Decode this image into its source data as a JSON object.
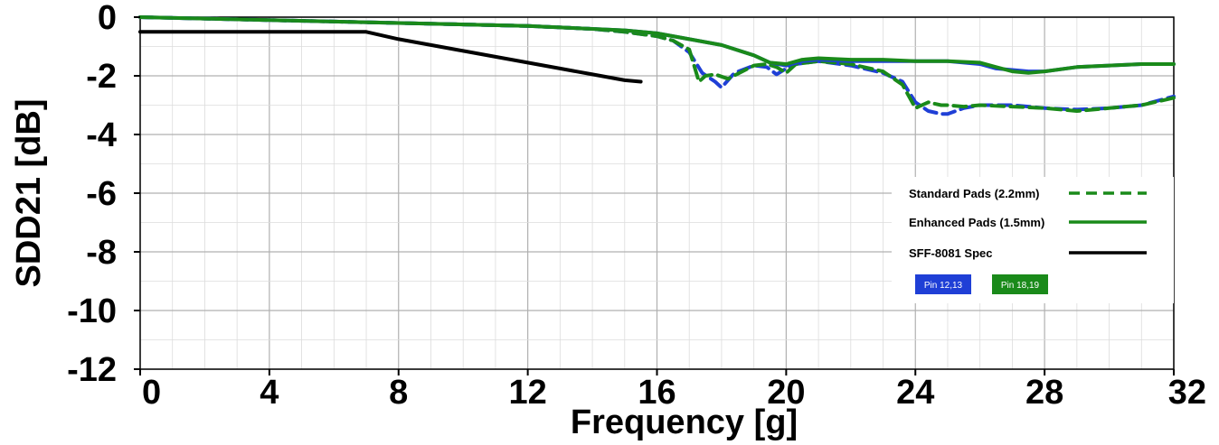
{
  "chart_data": {
    "type": "line",
    "title": "",
    "xlabel": "Frequency [g]",
    "ylabel": "SDD21 [dB]",
    "xlim": [
      0,
      32
    ],
    "ylim": [
      -12,
      0
    ],
    "xticks": [
      0,
      4,
      8,
      12,
      16,
      20,
      24,
      28,
      32
    ],
    "yticks": [
      0,
      -2,
      -4,
      -6,
      -8,
      -10,
      -12
    ],
    "grid": true,
    "legend_position": "right-center",
    "series": [
      {
        "name": "Standard Pads (2.2mm)",
        "group": "Pin 12,13",
        "color": "#1f3fd6",
        "style": "dashed",
        "x": [
          0,
          2,
          4,
          6,
          8,
          10,
          12,
          14,
          15,
          16,
          16.5,
          17,
          17.4,
          17.8,
          18,
          18.4,
          19,
          19.4,
          19.7,
          20,
          20.3,
          21,
          22,
          23,
          23.6,
          24,
          24.4,
          24.8,
          25,
          25.5,
          26,
          27,
          28,
          29,
          30,
          31,
          32
        ],
        "y": [
          0,
          -0.05,
          -0.1,
          -0.15,
          -0.2,
          -0.25,
          -0.3,
          -0.4,
          -0.5,
          -0.65,
          -0.8,
          -1.2,
          -1.9,
          -2.2,
          -2.4,
          -1.9,
          -1.65,
          -1.7,
          -1.95,
          -1.75,
          -1.6,
          -1.5,
          -1.65,
          -1.9,
          -2.2,
          -2.9,
          -3.2,
          -3.3,
          -3.3,
          -3.1,
          -3.0,
          -3.0,
          -3.1,
          -3.15,
          -3.1,
          -3.0,
          -2.7
        ]
      },
      {
        "name": "Standard Pads (2.2mm)",
        "group": "Pin 18,19",
        "color": "#1a8a1a",
        "style": "dashed",
        "x": [
          0,
          2,
          4,
          6,
          8,
          10,
          12,
          14,
          15,
          16,
          16.5,
          17,
          17.3,
          17.5,
          17.8,
          18.2,
          19,
          19.4,
          19.7,
          20,
          20.3,
          21,
          22,
          23,
          23.6,
          24,
          24.4,
          24.8,
          25,
          25.5,
          26,
          27,
          28,
          29,
          30,
          31,
          32
        ],
        "y": [
          0,
          -0.05,
          -0.1,
          -0.15,
          -0.2,
          -0.25,
          -0.3,
          -0.4,
          -0.5,
          -0.65,
          -0.8,
          -1.1,
          -2.2,
          -2.0,
          -1.95,
          -2.1,
          -1.65,
          -1.6,
          -1.7,
          -1.9,
          -1.6,
          -1.5,
          -1.6,
          -1.85,
          -2.3,
          -3.1,
          -2.9,
          -3.0,
          -3.0,
          -3.05,
          -3.0,
          -3.05,
          -3.1,
          -3.2,
          -3.1,
          -3.0,
          -2.75
        ]
      },
      {
        "name": "Enhanced Pads (1.5mm)",
        "group": "Pin 12,13",
        "color": "#1f3fd6",
        "style": "solid",
        "x": [
          0,
          2,
          4,
          6,
          8,
          10,
          12,
          14,
          15,
          16,
          17,
          18,
          19,
          19.5,
          20,
          20.5,
          21,
          22,
          23,
          24,
          25,
          26,
          26.5,
          27,
          27.5,
          28,
          29,
          30,
          31,
          32
        ],
        "y": [
          0,
          -0.05,
          -0.1,
          -0.15,
          -0.2,
          -0.25,
          -0.3,
          -0.4,
          -0.45,
          -0.55,
          -0.75,
          -0.95,
          -1.3,
          -1.55,
          -1.65,
          -1.5,
          -1.45,
          -1.5,
          -1.5,
          -1.5,
          -1.5,
          -1.6,
          -1.75,
          -1.8,
          -1.85,
          -1.85,
          -1.7,
          -1.65,
          -1.6,
          -1.6
        ]
      },
      {
        "name": "Enhanced Pads (1.5mm)",
        "group": "Pin 18,19",
        "color": "#1a8a1a",
        "style": "solid",
        "x": [
          0,
          2,
          4,
          6,
          8,
          10,
          12,
          14,
          15,
          16,
          17,
          18,
          19,
          19.5,
          20,
          20.5,
          21,
          22,
          23,
          24,
          25,
          26,
          26.5,
          27,
          27.5,
          28,
          29,
          30,
          31,
          32
        ],
        "y": [
          0,
          -0.05,
          -0.1,
          -0.15,
          -0.2,
          -0.25,
          -0.3,
          -0.4,
          -0.45,
          -0.55,
          -0.75,
          -0.95,
          -1.3,
          -1.55,
          -1.6,
          -1.45,
          -1.4,
          -1.45,
          -1.45,
          -1.5,
          -1.5,
          -1.55,
          -1.7,
          -1.85,
          -1.9,
          -1.85,
          -1.7,
          -1.65,
          -1.6,
          -1.6
        ]
      },
      {
        "name": "SFF-8081 Spec",
        "color": "#000000",
        "style": "solid",
        "x": [
          0,
          1,
          3,
          5,
          7,
          8,
          9,
          10,
          11,
          12,
          13,
          14,
          15,
          15.5
        ],
        "y": [
          -0.5,
          -0.5,
          -0.5,
          -0.5,
          -0.5,
          -0.75,
          -0.95,
          -1.15,
          -1.35,
          -1.55,
          -1.75,
          -1.95,
          -2.15,
          -2.2
        ]
      }
    ],
    "legend": [
      {
        "label": "Standard Pads (2.2mm)",
        "color": "#1a8a1a",
        "style": "dashed"
      },
      {
        "label": "Enhanced Pads (1.5mm)",
        "color": "#1a8a1a",
        "style": "solid"
      },
      {
        "label": "SFF-8081 Spec",
        "color": "#000000",
        "style": "solid"
      }
    ],
    "color_badges": [
      {
        "label": "Pin 12,13",
        "color": "#1f3fd6"
      },
      {
        "label": "Pin 18,19",
        "color": "#1a8a1a"
      }
    ]
  }
}
